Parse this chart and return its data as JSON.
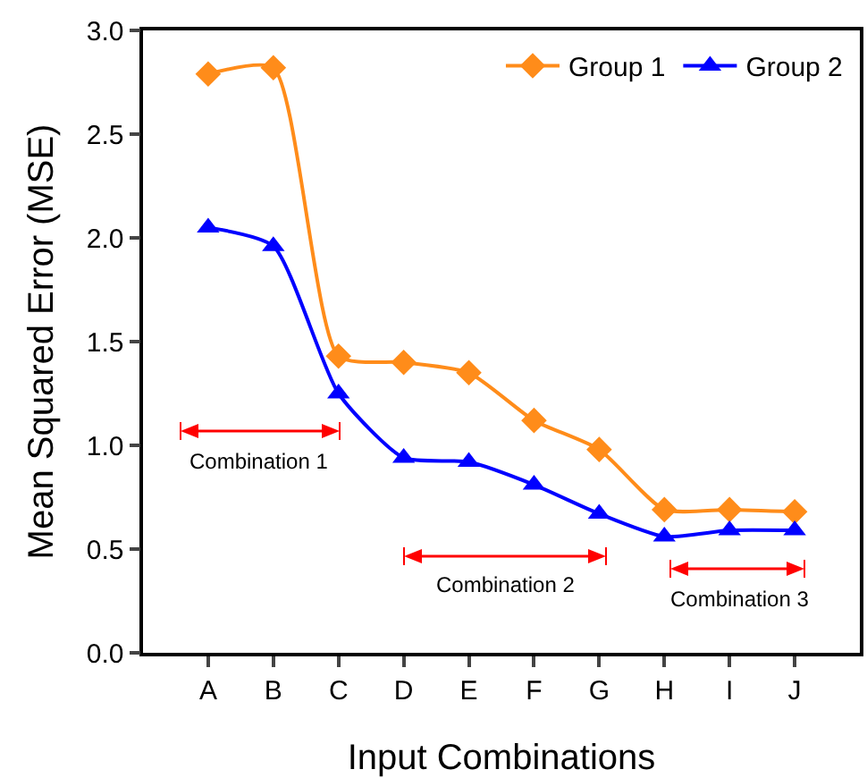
{
  "chart_data": {
    "type": "line",
    "xlabel": "Input Combinations",
    "ylabel": "Mean Squared Error (MSE)",
    "categories": [
      "A",
      "B",
      "C",
      "D",
      "E",
      "F",
      "G",
      "H",
      "I",
      "J"
    ],
    "series": [
      {
        "name": "Group 1",
        "color": "#ff8c1a",
        "marker": "diamond",
        "values": [
          2.79,
          2.82,
          1.43,
          1.4,
          1.35,
          1.12,
          0.98,
          0.69,
          0.69,
          0.68
        ]
      },
      {
        "name": "Group 2",
        "color": "#0000ff",
        "marker": "triangle",
        "values": [
          2.05,
          1.96,
          1.25,
          0.94,
          0.92,
          0.81,
          0.67,
          0.56,
          0.59,
          0.59
        ]
      }
    ],
    "ylim": [
      0,
      3
    ],
    "yticks": [
      {
        "value": 0,
        "label": "0.0"
      },
      0.5,
      {
        "value": 1,
        "label": "1.0"
      },
      1.5,
      {
        "value": 2,
        "label": "2.0"
      },
      2.5,
      {
        "value": 3,
        "label": "3.0"
      }
    ],
    "annotations": [
      "Combination 1",
      "Combination 2",
      "Combination 3"
    ],
    "grid": false,
    "legend": "top right"
  }
}
